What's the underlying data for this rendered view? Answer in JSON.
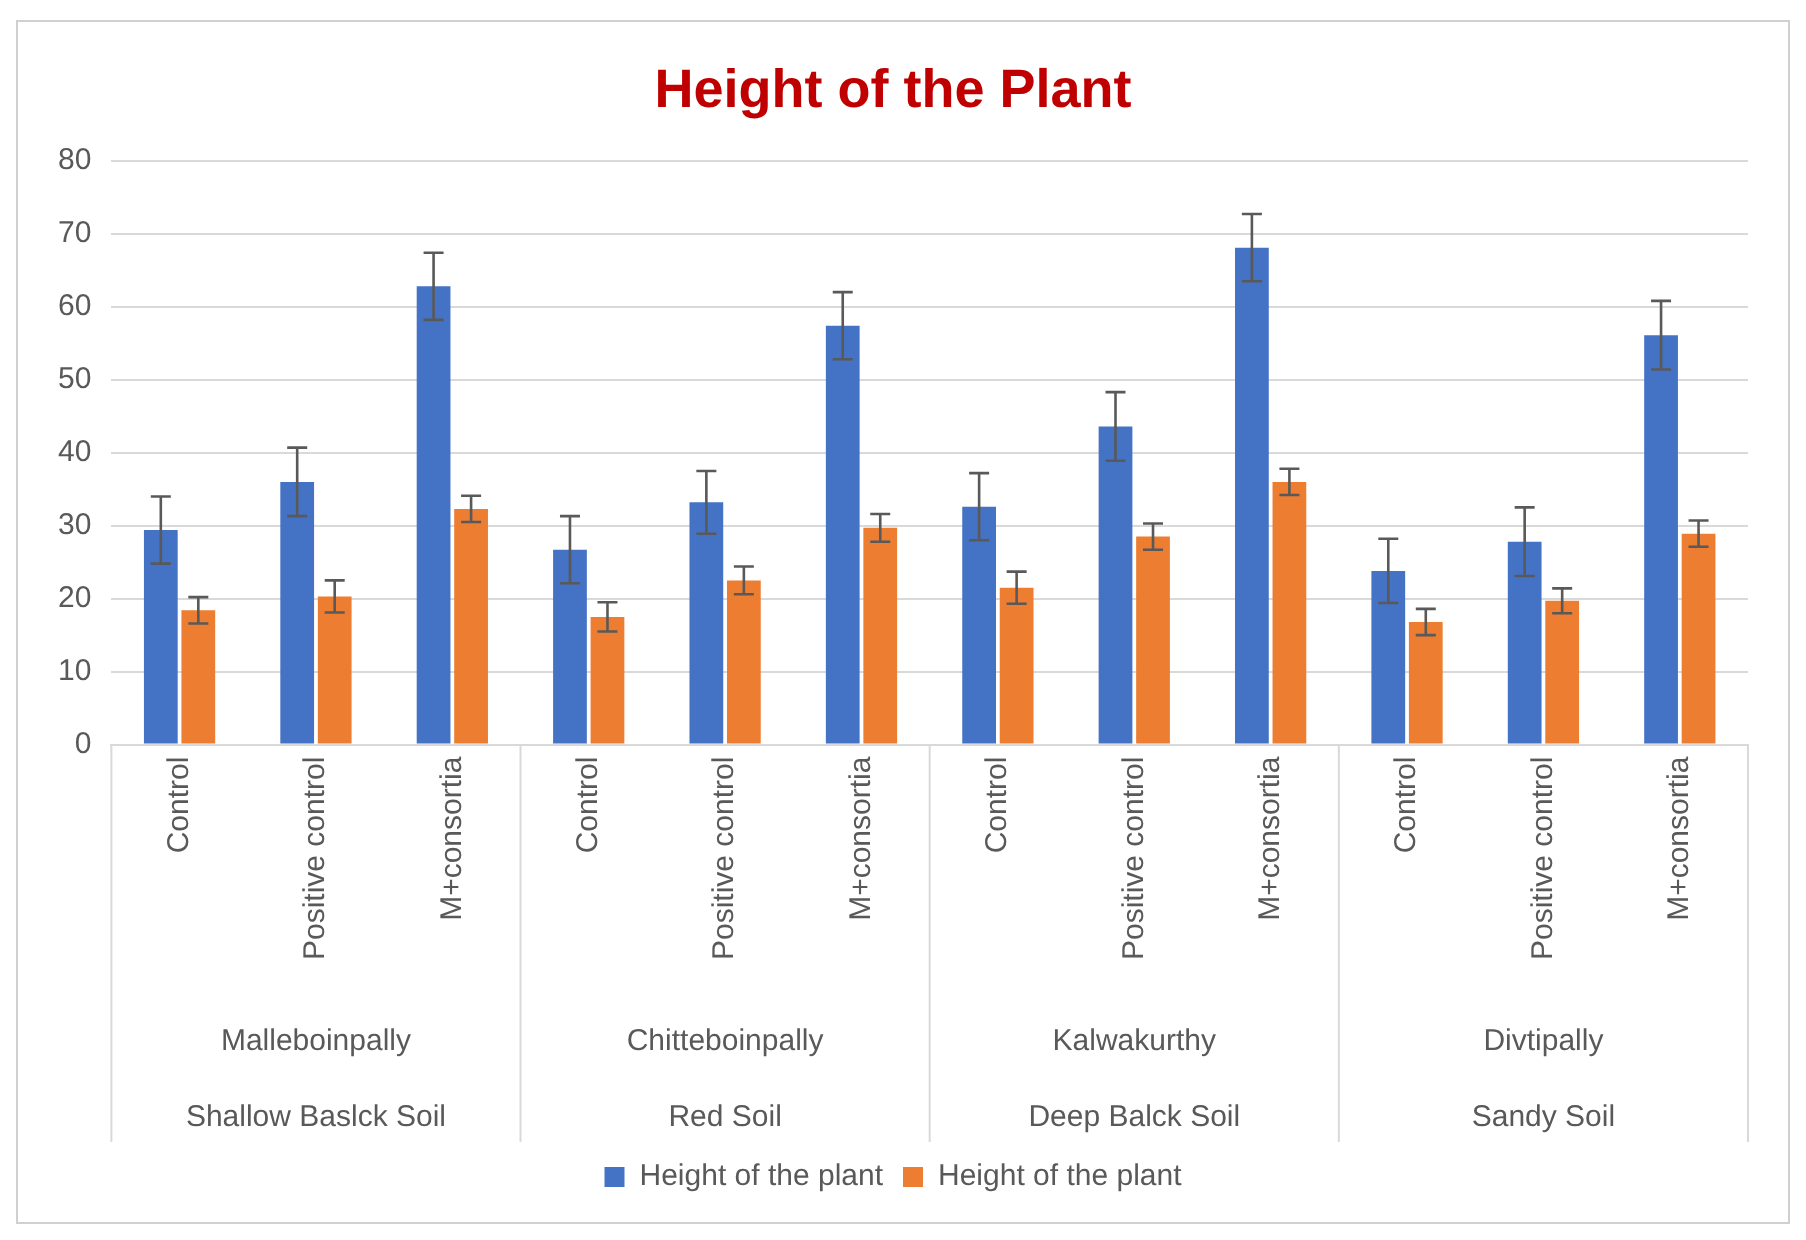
{
  "chart_data": {
    "type": "bar",
    "title": "Height of the Plant",
    "categories": [
      "Control",
      "Positive control",
      "M+consortia",
      "Control",
      "Positive control",
      "M+consortia",
      "Control",
      "Positive control",
      "M+consortia",
      "Control",
      "Positive control",
      "M+consortia"
    ],
    "series": [
      {
        "name": "Height of the plant",
        "color": "#4472c4",
        "values": [
          29.4,
          36.0,
          62.8,
          26.7,
          33.2,
          57.4,
          32.6,
          43.6,
          68.1,
          23.8,
          27.8,
          56.1
        ],
        "errors": [
          4.6,
          4.7,
          4.6,
          4.6,
          4.3,
          4.6,
          4.6,
          4.7,
          4.6,
          4.4,
          4.7,
          4.7
        ]
      },
      {
        "name": "Height of the plant",
        "color": "#ed7d31",
        "values": [
          18.4,
          20.3,
          32.3,
          17.5,
          22.5,
          29.7,
          21.5,
          28.5,
          36.0,
          16.8,
          19.7,
          28.9
        ],
        "errors": [
          1.8,
          2.2,
          1.8,
          2.0,
          1.9,
          1.9,
          2.2,
          1.8,
          1.8,
          1.8,
          1.7,
          1.8
        ]
      }
    ],
    "annotations": [
      "Malleboinpally",
      "Chitteboinpally",
      "Kalwakurthy",
      "Divtipally",
      "Shallow Baslck Soil",
      "Red Soil",
      "Deep Balck Soil",
      "Sandy Soil"
    ],
    "ylim": [
      0,
      80
    ],
    "yticks": [
      0,
      10,
      20,
      30,
      40,
      50,
      60,
      70,
      80
    ],
    "grid": "y",
    "legend": "bottom"
  }
}
